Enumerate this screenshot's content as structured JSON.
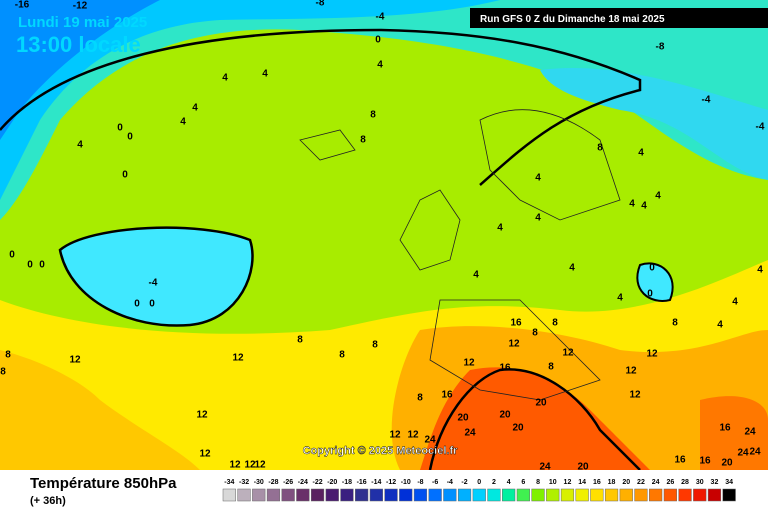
{
  "header": {
    "date": "Lundi 19 mai 2025",
    "time": "13:00 locale",
    "run": "Run GFS 0 Z du Dimanche 18 mai 2025"
  },
  "map": {
    "copyright": "Copyright © 2025 Meteociel.fr",
    "contour_labels": [
      -16,
      -12,
      -8,
      -4,
      0,
      4,
      -8,
      -4,
      -4,
      4,
      4,
      4,
      4,
      0,
      0,
      4,
      0,
      8,
      8,
      8,
      4,
      4,
      4,
      4,
      4,
      4,
      4,
      4,
      4,
      4,
      0,
      0,
      0,
      0,
      0,
      -4,
      0,
      0,
      16,
      8,
      8,
      12,
      12,
      12,
      4,
      4,
      8,
      4,
      8,
      8,
      8,
      12,
      12,
      12,
      16,
      8,
      12,
      12,
      16,
      8,
      20,
      20,
      20,
      12,
      24,
      20,
      12,
      12,
      24,
      24,
      16,
      20,
      24,
      24,
      12,
      12,
      12,
      12,
      24,
      20,
      16,
      16,
      8,
      8
    ]
  },
  "footer": {
    "title": "Température 850hPa",
    "subtitle": "(+ 36h)"
  },
  "legend": {
    "labels": [
      -34,
      -32,
      -30,
      -28,
      -26,
      -24,
      -22,
      -20,
      -18,
      -16,
      -14,
      -12,
      -10,
      -8,
      -6,
      -4,
      -2,
      0,
      2,
      4,
      6,
      8,
      10,
      12,
      14,
      16,
      18,
      20,
      22,
      24,
      26,
      28,
      30,
      32,
      34
    ],
    "colors": [
      "#d8d8d8",
      "#bcb0bc",
      "#a890a8",
      "#947094",
      "#805080",
      "#6a306a",
      "#5a2060",
      "#4a1a70",
      "#3a2080",
      "#303090",
      "#2030a8",
      "#1030c0",
      "#0030d8",
      "#0050f0",
      "#0070ff",
      "#0090ff",
      "#00b0ff",
      "#00d0ff",
      "#00e8e0",
      "#00f0a0",
      "#40f050",
      "#80f000",
      "#b0f000",
      "#d8f000",
      "#f0f000",
      "#ffe000",
      "#ffc800",
      "#ffb000",
      "#ff9800",
      "#ff7800",
      "#ff5800",
      "#ff3800",
      "#f01800",
      "#c80000",
      "#000000"
    ]
  }
}
